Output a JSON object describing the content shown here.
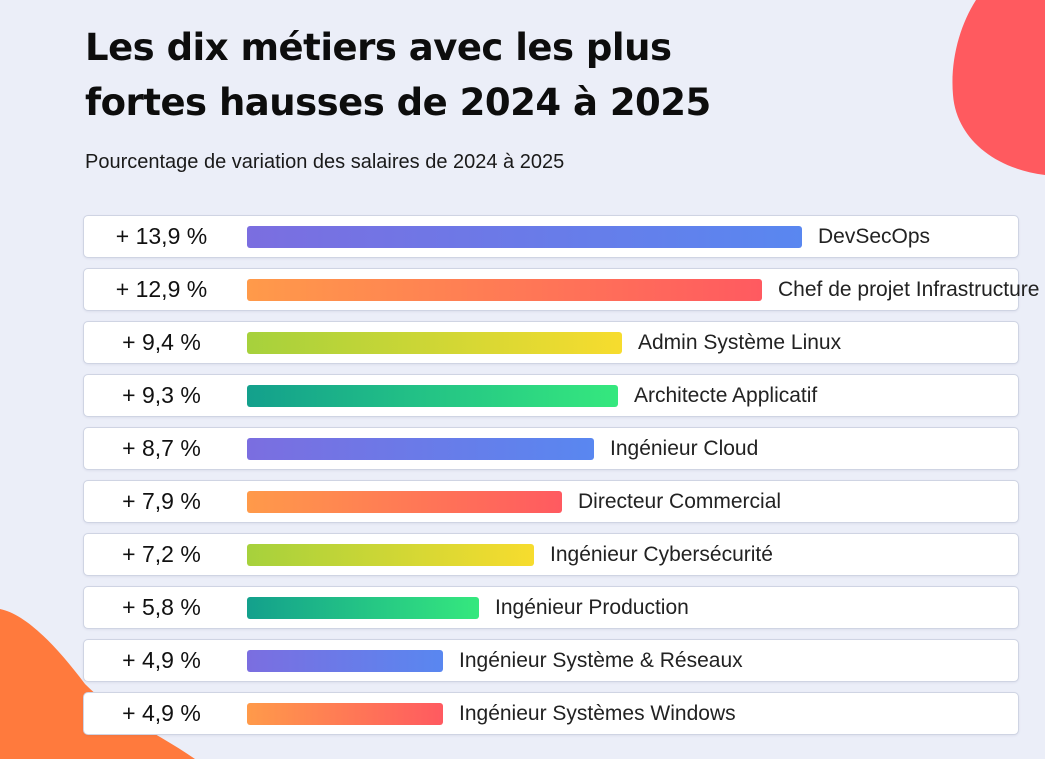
{
  "header": {
    "title": "Les dix métiers avec les plus\nfortes hausses de 2024 à 2025",
    "subtitle": "Pourcentage de variation des salaires de 2024 à 2025"
  },
  "colors": {
    "background": "#ebeef8",
    "blob_top": "#ff5a5f",
    "blob_bottom": "#ff7a3d",
    "palettes": [
      [
        "#7b6ee0",
        "#5987f0"
      ],
      [
        "#ff9a4a",
        "#ff5a60"
      ],
      [
        "#a6d13c",
        "#f7dc2e"
      ],
      [
        "#13a08c",
        "#35e87e"
      ]
    ]
  },
  "chart_data": {
    "type": "bar",
    "orientation": "horizontal",
    "title": "Les dix métiers avec les plus fortes hausses de 2024 à 2025",
    "subtitle": "Pourcentage de variation des salaires de 2024 à 2025",
    "unit": "%",
    "categories": [
      "DevSecOps",
      "Chef de projet Infrastructure",
      "Admin Système Linux",
      "Architecte Applicatif",
      "Ingénieur Cloud",
      "Directeur Commercial",
      "Ingénieur Cybersécurité",
      "Ingénieur Production",
      "Ingénieur Système & Réseaux",
      "Ingénieur Systèmes Windows"
    ],
    "values": [
      13.9,
      12.9,
      9.4,
      9.3,
      8.7,
      7.9,
      7.2,
      5.8,
      4.9,
      4.9
    ],
    "value_labels": [
      "+ 13,9 %",
      "+ 12,9 %",
      "+ 9,4 %",
      "+ 9,3 %",
      "+ 8,7 %",
      "+ 7,9 %",
      "+ 7,2 %",
      "+ 5,8 %",
      "+ 4,9 %",
      "+ 4,9 %"
    ],
    "grid": false,
    "legend": "none"
  }
}
